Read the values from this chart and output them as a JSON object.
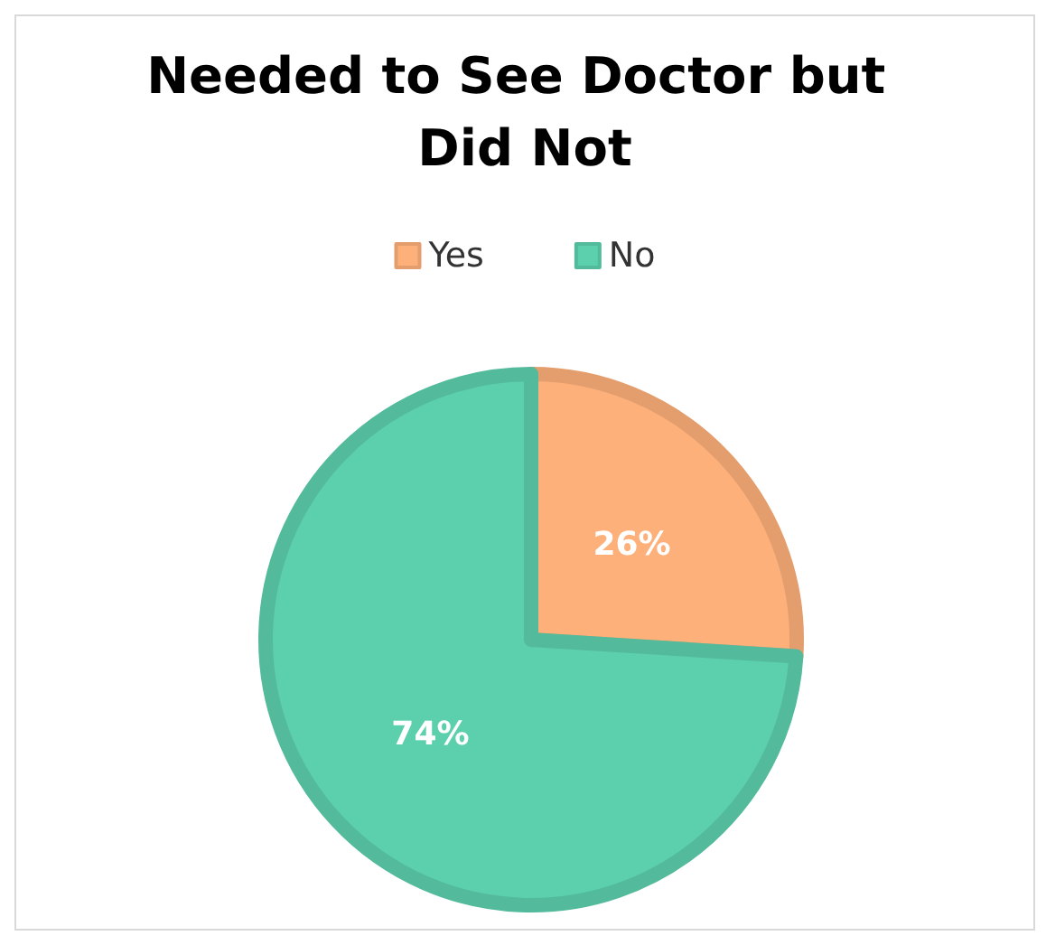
{
  "chart_data": {
    "type": "pie",
    "title": "Needed to See Doctor but Did Not",
    "categories": [
      "Yes",
      "No"
    ],
    "values": [
      26,
      74
    ],
    "colors": [
      "#fdb07a",
      "#5ccfad"
    ],
    "value_labels": [
      "26%",
      "74%"
    ],
    "legend": "top"
  }
}
